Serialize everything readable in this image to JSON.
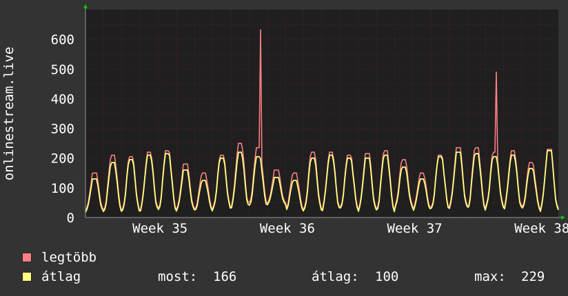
{
  "chart_data": {
    "type": "line",
    "ylabel": "onlinestream.live",
    "ylim": [
      0,
      700
    ],
    "y_ticks": [
      0,
      100,
      200,
      300,
      400,
      500,
      600
    ],
    "x_ticks": [
      "Week 35",
      "Week 36",
      "Week 37",
      "Week 38"
    ],
    "grid": true,
    "colors": {
      "background": "#333333",
      "plot_background": "#1f1f1f",
      "grid": "#5a1f1f",
      "axis": "#9a9a9a",
      "max_series": "#ff7f84",
      "avg_series": "#ffff80",
      "arrow": "#00cc00"
    },
    "series": [
      {
        "name": "legtöbb",
        "color": "#ff7f84",
        "peaks": [
          150,
          210,
          205,
          220,
          225,
          180,
          150,
          210,
          250,
          235,
          160,
          150,
          220,
          220,
          210,
          215,
          225,
          195,
          150,
          210,
          235,
          235,
          220,
          225,
          185,
          230
        ],
        "troughs": [
          25,
          30,
          25,
          30,
          30,
          30,
          30,
          35,
          40,
          50,
          50,
          30,
          30,
          30,
          35,
          30,
          30,
          40,
          30,
          35,
          40,
          35,
          40,
          35,
          35,
          30
        ],
        "spikes": [
          {
            "cycle": 9,
            "value": 632
          },
          {
            "cycle": 22,
            "value": 490
          }
        ]
      },
      {
        "name": "átlag",
        "color": "#ffff80",
        "peaks": [
          130,
          185,
          195,
          210,
          215,
          160,
          125,
          200,
          220,
          205,
          135,
          125,
          200,
          210,
          200,
          200,
          210,
          170,
          130,
          205,
          220,
          215,
          205,
          210,
          165,
          225
        ],
        "troughs": [
          20,
          25,
          20,
          25,
          25,
          25,
          25,
          30,
          35,
          40,
          45,
          25,
          25,
          25,
          30,
          25,
          25,
          35,
          25,
          30,
          35,
          30,
          35,
          30,
          30,
          25
        ]
      }
    ],
    "legend": {
      "max_label": "legtöbb",
      "avg_label": "átlag",
      "current_label": "most:",
      "current_value": "166",
      "avg_stat_label": "átlag:",
      "avg_stat_value": "100",
      "max_stat_label": "max:",
      "max_stat_value": "229"
    }
  }
}
